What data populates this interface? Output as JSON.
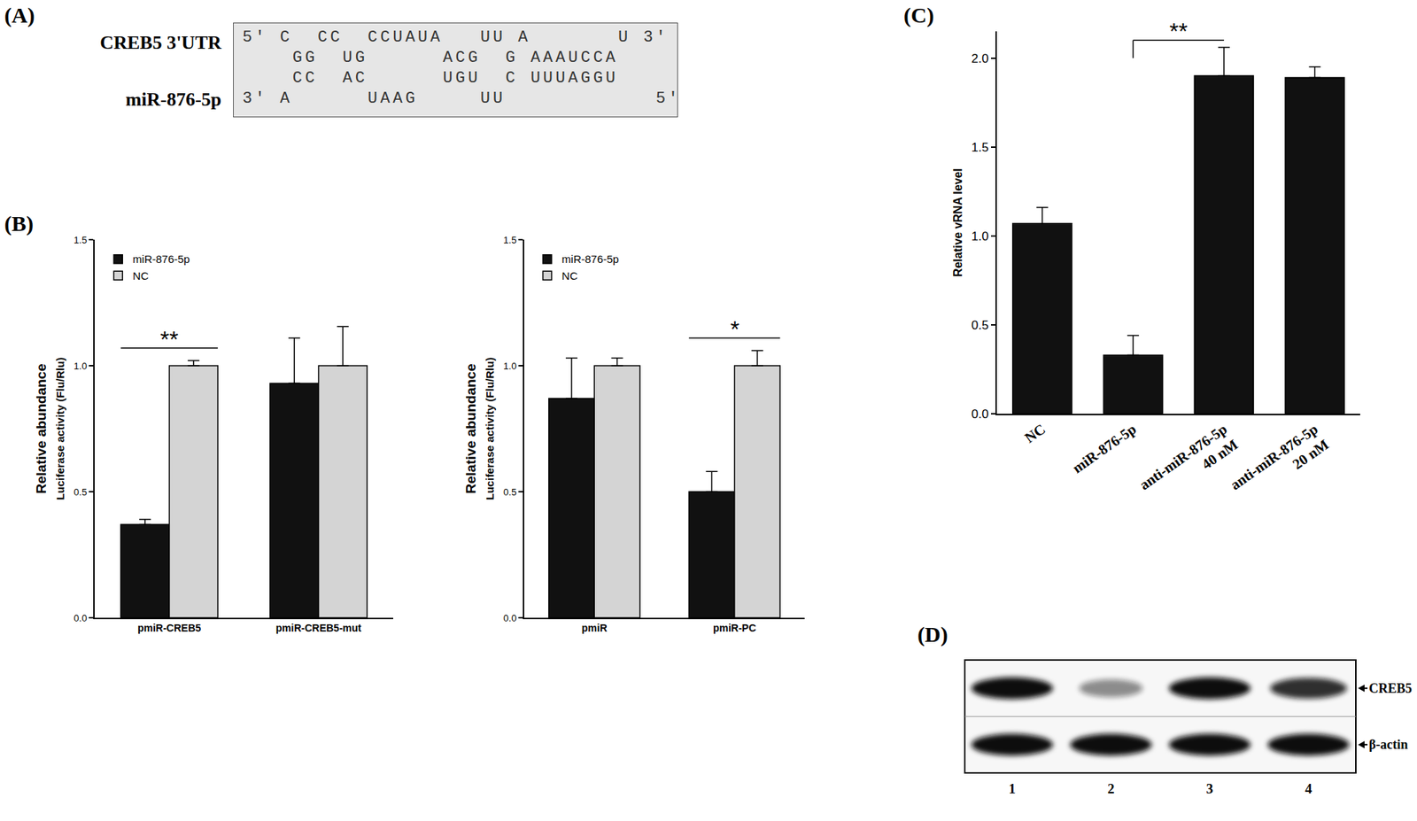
{
  "panel_labels": [
    "(A)",
    "(B)",
    "(C)",
    "(D)"
  ],
  "alignment": {
    "labels": [
      "CREB5 3'UTR",
      "miR-876-5p"
    ],
    "lines": [
      "5' C  CC  CCUAUA   UU A       U 3'",
      "    GG  UG      ACG  G AAAUCCA",
      "    CC  AC      UGU  C UUUAGGU",
      "3' A      UAAG     UU            5'"
    ]
  },
  "chart_data": [
    {
      "type": "bar",
      "categories": [
        "pmiR-CREB5",
        "pmiR-CREB5-mut"
      ],
      "series": [
        {
          "name": "miR-876-5p",
          "color": "#111111",
          "values": [
            0.37,
            0.93
          ],
          "errors": [
            0.02,
            0.18
          ]
        },
        {
          "name": "NC",
          "color": "#d4d4d4",
          "values": [
            1.0,
            1.0
          ],
          "errors": [
            0.02,
            0.155
          ]
        }
      ],
      "ylabel": "Relative abundance\nLuciferase activity (Flu/Rlu)",
      "ylim": [
        0,
        1.5
      ],
      "yticks": [
        {
          "value": 0,
          "label": "0.0"
        },
        0.5,
        {
          "value": 1,
          "label": "1.0"
        },
        1.5
      ],
      "grid": false,
      "legend": "upper left",
      "annotations": [
        {
          "text": "**",
          "category": "pmiR-CREB5"
        }
      ]
    },
    {
      "type": "bar",
      "categories": [
        "pmiR",
        "pmiR-PC"
      ],
      "series": [
        {
          "name": "miR-876-5p",
          "color": "#111111",
          "values": [
            0.87,
            0.5
          ],
          "errors": [
            0.16,
            0.08
          ]
        },
        {
          "name": "NC",
          "color": "#d4d4d4",
          "values": [
            1.0,
            1.0
          ],
          "errors": [
            0.03,
            0.06
          ]
        }
      ],
      "ylabel": "Relative abundance\nLuciferase activity (Flu/Rlu)",
      "ylim": [
        0,
        1.5
      ],
      "yticks": [
        {
          "value": 0,
          "label": "0.0"
        },
        0.5,
        {
          "value": 1,
          "label": "1.0"
        },
        1.5
      ],
      "grid": false,
      "legend": "upper left",
      "annotations": [
        {
          "text": "*",
          "category": "pmiR-PC"
        }
      ]
    },
    {
      "type": "bar",
      "categories": [
        "NC",
        "miR-876-5p",
        "anti-miR-876-5p\n40 nM",
        "anti-miR-876-5p\n20 nM"
      ],
      "values": [
        1.07,
        0.33,
        1.9,
        1.89
      ],
      "errors": [
        0.09,
        0.11,
        0.16,
        0.06
      ],
      "color": "#111111",
      "ylabel": "Relative vRNA level",
      "ylim": [
        0,
        2.15
      ],
      "yticks": [
        {
          "value": 0,
          "label": "0.0"
        },
        0.5,
        {
          "value": 1,
          "label": "1.0"
        },
        1.5,
        {
          "value": 2,
          "label": "2.0"
        }
      ],
      "grid": false,
      "annotations": [
        {
          "text": "**",
          "from": "miR-876-5p",
          "to": "anti-miR-876-5p\n40 nM"
        }
      ]
    }
  ],
  "blot": {
    "lanes": [
      "1",
      "2",
      "3",
      "4"
    ],
    "targets": [
      {
        "name": "CREB5",
        "intensity": [
          1.0,
          0.45,
          1.0,
          0.85
        ]
      },
      {
        "name": "β-actin",
        "intensity": [
          1.0,
          1.0,
          1.0,
          1.0
        ]
      }
    ]
  }
}
